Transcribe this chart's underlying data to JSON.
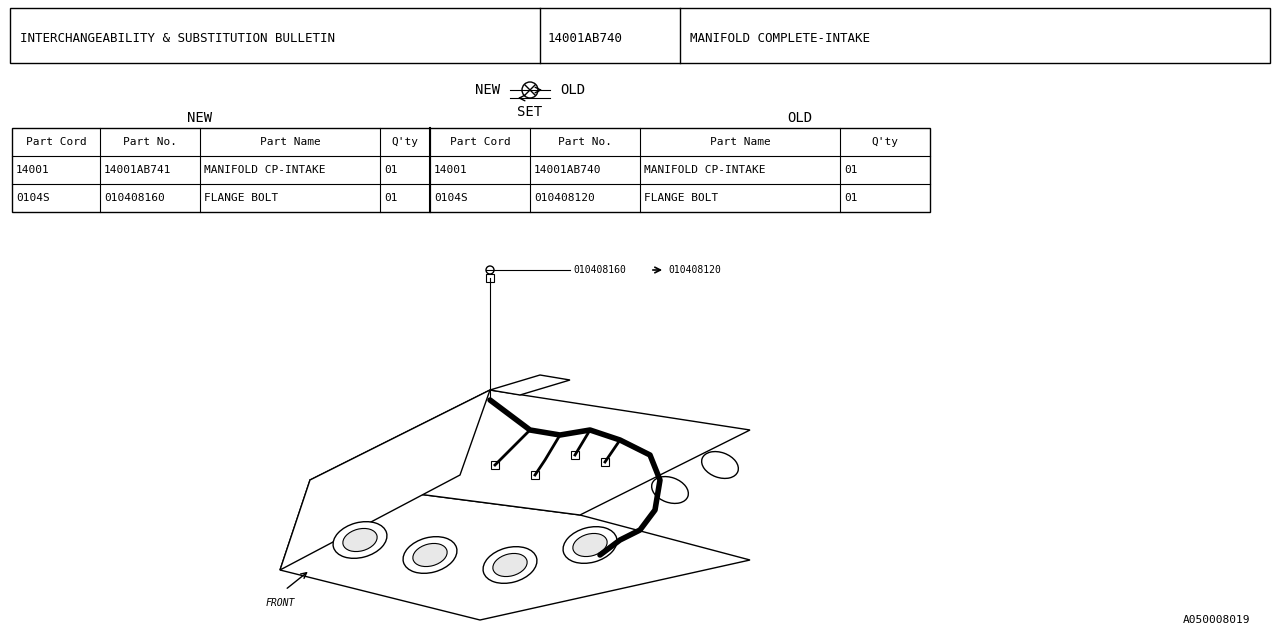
{
  "bg_color": "#ffffff",
  "header_row": {
    "col1": "INTERCHANGEABILITY & SUBSTITUTION BULLETIN",
    "col2": "14001AB740",
    "col3": "MANIFOLD COMPLETE-INTAKE"
  },
  "legend_symbol_new_label": "NEW",
  "legend_symbol_old_label": "OLD",
  "legend_symbol_set_label": "SET",
  "section_new_label": "NEW",
  "section_old_label": "OLD",
  "table_headers": [
    "Part Cord",
    "Part No.",
    "Part Name",
    "Q'ty",
    "Part Cord",
    "Part No.",
    "Part Name",
    "Q'ty"
  ],
  "table_rows": [
    [
      "14001",
      "14001AB741",
      "MANIFOLD CP-INTAKE",
      "01",
      "14001",
      "14001AB740",
      "MANIFOLD CP-INTAKE",
      "01"
    ],
    [
      "0104S",
      "010408160",
      "FLANGE BOLT",
      "01",
      "0104S",
      "010408120",
      "FLANGE BOLT",
      "01"
    ]
  ],
  "part_label_new": "010408160",
  "part_label_old": "010408120",
  "front_label": "FRONT",
  "diagram_code": "A050008019",
  "font_family": "monospace",
  "font_size_header": 9,
  "font_size_table": 8,
  "font_size_legend": 10,
  "font_size_small": 7
}
